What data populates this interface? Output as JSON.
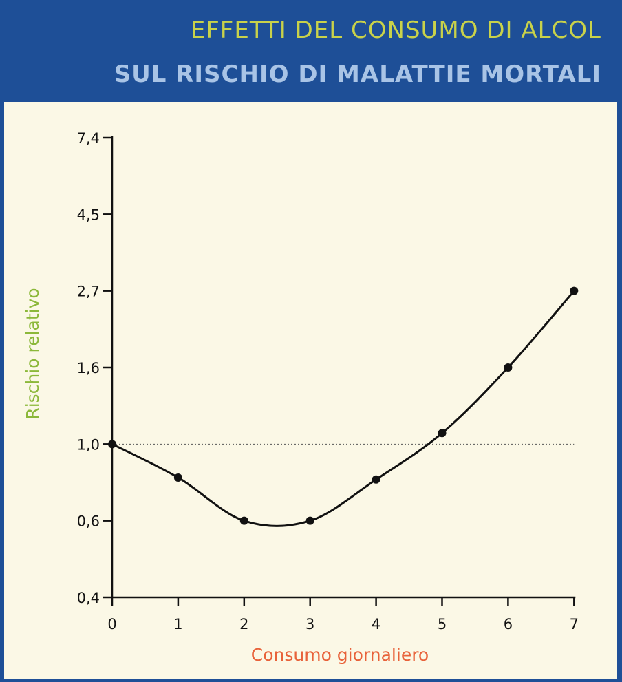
{
  "colors": {
    "frame": "#1e4f97",
    "panel": "#fbf8e6",
    "title": "#c9d24a",
    "subtitle": "#a9c4e6",
    "ylabel": "#8cb83a",
    "xlabel": "#e8623a"
  },
  "header": {
    "title": "EFFETTI DEL CONSUMO DI ALCOL",
    "subtitle": "SUL RISCHIO DI MALATTIE MORTALI"
  },
  "chart_data": {
    "type": "line",
    "xlabel": "Consumo giornaliero",
    "ylabel": "Rischio relativo",
    "x_ticks": [
      "0",
      "1",
      "2",
      "3",
      "4",
      "5",
      "6",
      "7"
    ],
    "y_ticks": [
      "0,4",
      "0,6",
      "1,0",
      "1,6",
      "2,7",
      "4,5",
      "7,4"
    ],
    "y_tick_values": [
      0.4,
      0.6,
      1.0,
      1.6,
      2.7,
      4.5,
      7.4
    ],
    "reference_line": 1.0,
    "grid": false,
    "series": [
      {
        "x": [
          0,
          1,
          2,
          3,
          4,
          5,
          6,
          7
        ],
        "values": [
          1.0,
          0.8,
          0.6,
          0.6,
          0.79,
          1.07,
          1.6,
          2.7
        ]
      }
    ]
  }
}
